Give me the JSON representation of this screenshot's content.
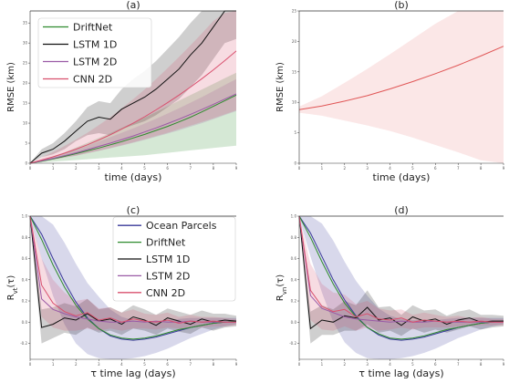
{
  "chart_data": [
    {
      "type": "line",
      "title": "(a)",
      "xlabel": "time (days)",
      "ylabel": "RMSE (km)",
      "xlim": [
        0,
        9
      ],
      "ylim": [
        0,
        38
      ],
      "grid": false,
      "legend_position": "top-left",
      "xticks": [
        "0",
        "1",
        "2",
        "3",
        "4",
        "5",
        "6",
        "7",
        "8",
        "9"
      ],
      "yticks": [
        "0",
        "5",
        "10",
        "15",
        "20",
        "25",
        "30",
        "35"
      ],
      "x": [
        0,
        0.5,
        1,
        1.5,
        2,
        2.5,
        3,
        3.5,
        4,
        4.5,
        5,
        5.5,
        6,
        6.5,
        7,
        7.5,
        8,
        8.5,
        9
      ],
      "series": [
        {
          "name": "DriftNet",
          "color": "#2e8b2e",
          "values": [
            0,
            0.5,
            1.1,
            1.7,
            2.4,
            3.1,
            3.8,
            4.6,
            5.4,
            6.3,
            7.2,
            8.2,
            9.2,
            10.3,
            11.5,
            12.8,
            14.2,
            15.6,
            17.0
          ],
          "band_lower": [
            0,
            0.2,
            0.4,
            0.6,
            0.8,
            1.0,
            1.2,
            1.4,
            1.6,
            1.8,
            2.0,
            2.3,
            2.6,
            2.9,
            3.2,
            3.5,
            3.8,
            4.1,
            4.4
          ],
          "band_upper": [
            0,
            0.8,
            1.7,
            2.7,
            3.9,
            5.1,
            6.3,
            7.5,
            8.8,
            10.1,
            11.4,
            12.8,
            14.2,
            15.6,
            17.0,
            18.4,
            19.8,
            21.2,
            22.6
          ]
        },
        {
          "name": "LSTM 1D",
          "color": "#111111",
          "values": [
            0,
            2.5,
            3.5,
            5.5,
            8.0,
            10.5,
            11.5,
            11.0,
            13.5,
            15.0,
            16.5,
            18.5,
            21.0,
            23.5,
            27.0,
            30.0,
            34.0,
            38.0,
            38.5
          ],
          "band_lower": [
            0,
            1.5,
            2.2,
            3.5,
            5.5,
            7.0,
            7.5,
            7.0,
            8.5,
            9.5,
            10.5,
            12.0,
            14.0,
            16.0,
            19.0,
            22.0,
            26.0,
            30.0,
            31.0
          ],
          "band_upper": [
            0,
            3.5,
            5.0,
            7.5,
            10.5,
            14.0,
            15.5,
            15.0,
            18.5,
            21.0,
            23.0,
            25.5,
            28.5,
            31.5,
            35.0,
            38.0,
            38.0,
            38.0,
            38.0
          ]
        },
        {
          "name": "LSTM 2D",
          "color": "#9a5aa6",
          "values": [
            0,
            0.6,
            1.2,
            1.9,
            2.6,
            3.4,
            4.2,
            5.0,
            5.9,
            6.8,
            7.8,
            8.8,
            9.9,
            11.0,
            12.2,
            13.4,
            14.7,
            16.0,
            17.3
          ],
          "band_lower": [
            0,
            0.4,
            0.9,
            1.4,
            1.9,
            2.5,
            3.1,
            3.7,
            4.4,
            5.1,
            5.8,
            6.6,
            7.4,
            8.2,
            9.1,
            10.0,
            11.0,
            12.0,
            13.0
          ],
          "band_upper": [
            0,
            0.8,
            1.6,
            2.5,
            3.4,
            4.4,
            5.4,
            6.5,
            7.6,
            8.7,
            9.9,
            11.1,
            12.4,
            13.7,
            15.1,
            16.5,
            18.0,
            19.5,
            21.0
          ]
        },
        {
          "name": "CNN 2D",
          "color": "#d9506e",
          "values": [
            0,
            0.8,
            1.6,
            2.5,
            3.5,
            4.6,
            5.8,
            7.1,
            8.5,
            10.0,
            11.6,
            13.3,
            15.1,
            17.0,
            19.0,
            21.1,
            23.3,
            25.6,
            28.0
          ],
          "band_lower": [
            0,
            0.4,
            0.9,
            1.4,
            1.9,
            2.5,
            3.1,
            3.8,
            4.5,
            5.2,
            6.0,
            6.8,
            7.6,
            8.5,
            9.4,
            10.3,
            11.2,
            12.2,
            13.2
          ],
          "band_upper": [
            0,
            1.4,
            2.8,
            4.3,
            5.9,
            7.6,
            9.5,
            11.5,
            13.7,
            16.0,
            18.4,
            21.0,
            23.7,
            26.5,
            29.4,
            32.4,
            35.5,
            37.5,
            38.0
          ]
        }
      ]
    },
    {
      "type": "line",
      "title": "(b)",
      "xlabel": "time (days)",
      "ylabel": "RMSE (km)",
      "xlim": [
        0,
        9
      ],
      "ylim": [
        0,
        25
      ],
      "grid": false,
      "xticks": [
        "0",
        "1",
        "2",
        "3",
        "4",
        "5",
        "6",
        "7",
        "8",
        "9"
      ],
      "yticks": [
        "0",
        "5",
        "10",
        "15",
        "20",
        "25"
      ],
      "x": [
        0,
        1,
        2,
        3,
        4,
        5,
        6,
        7,
        8,
        9
      ],
      "series": [
        {
          "color": "#e05555",
          "values": [
            8.8,
            9.4,
            10.2,
            11.1,
            12.2,
            13.4,
            14.7,
            16.1,
            17.6,
            19.2
          ],
          "band_lower": [
            8.3,
            7.8,
            7.0,
            6.2,
            5.3,
            4.2,
            3.0,
            1.8,
            0.5,
            0.0
          ],
          "band_upper": [
            9.3,
            11.0,
            13.2,
            15.5,
            17.9,
            20.4,
            22.9,
            25.0,
            25.0,
            25.0
          ]
        }
      ]
    },
    {
      "type": "line",
      "title": "(c)",
      "xlabel": "τ time lag (days)",
      "ylabel": "R_{v_t}(τ)",
      "xlim": [
        0,
        9
      ],
      "ylim": [
        -0.35,
        1.0
      ],
      "grid": false,
      "legend_position": "top-right",
      "xticks": [
        "0",
        "1",
        "2",
        "3",
        "4",
        "5",
        "6",
        "7",
        "8",
        "9"
      ],
      "yticks": [
        "-0.2",
        "0.0",
        "0.2",
        "0.4",
        "0.6",
        "0.8",
        "1.0"
      ],
      "x": [
        0,
        0.5,
        1,
        1.5,
        2,
        2.5,
        3,
        3.5,
        4,
        4.5,
        5,
        5.5,
        6,
        6.5,
        7,
        7.5,
        8,
        8.5,
        9
      ],
      "series": [
        {
          "name": "Ocean Parcels",
          "color": "#3a3a9a",
          "values": [
            1.0,
            0.83,
            0.6,
            0.38,
            0.19,
            0.04,
            -0.06,
            -0.13,
            -0.16,
            -0.17,
            -0.16,
            -0.14,
            -0.11,
            -0.08,
            -0.05,
            -0.03,
            -0.01,
            0.0,
            0.01
          ],
          "band_lower": [
            0.98,
            0.6,
            0.25,
            -0.02,
            -0.2,
            -0.3,
            -0.34,
            -0.35,
            -0.35,
            -0.34,
            -0.32,
            -0.29,
            -0.25,
            -0.2,
            -0.15,
            -0.11,
            -0.07,
            -0.04,
            -0.02
          ],
          "band_upper": [
            1.0,
            1.0,
            0.92,
            0.75,
            0.55,
            0.37,
            0.24,
            0.12,
            0.05,
            0.02,
            0.01,
            0.01,
            0.02,
            0.03,
            0.04,
            0.04,
            0.04,
            0.04,
            0.04
          ]
        },
        {
          "name": "DriftNet",
          "color": "#2e8b2e",
          "values": [
            1.0,
            0.78,
            0.54,
            0.33,
            0.16,
            0.03,
            -0.06,
            -0.12,
            -0.15,
            -0.16,
            -0.15,
            -0.13,
            -0.1,
            -0.07,
            -0.05,
            -0.03,
            -0.01,
            0.0,
            0.01
          ]
        },
        {
          "name": "LSTM 1D",
          "color": "#111111",
          "values": [
            1.0,
            -0.05,
            -0.02,
            0.04,
            0.02,
            0.08,
            0.01,
            0.03,
            -0.02,
            0.05,
            0.02,
            -0.03,
            0.04,
            0.01,
            -0.02,
            0.03,
            0.0,
            0.02,
            0.01
          ],
          "band_lower": [
            0.98,
            -0.2,
            -0.15,
            -0.1,
            -0.12,
            -0.05,
            -0.1,
            -0.08,
            -0.12,
            -0.06,
            -0.08,
            -0.12,
            -0.06,
            -0.09,
            -0.11,
            -0.05,
            -0.08,
            -0.05,
            -0.04
          ],
          "band_upper": [
            1.0,
            0.12,
            0.14,
            0.18,
            0.15,
            0.22,
            0.12,
            0.14,
            0.09,
            0.16,
            0.12,
            0.07,
            0.13,
            0.1,
            0.07,
            0.11,
            0.08,
            0.08,
            0.06
          ]
        },
        {
          "name": "LSTM 2D",
          "color": "#9a5aa6",
          "values": [
            1.0,
            0.22,
            0.12,
            0.08,
            0.05,
            0.03,
            0.01,
            0.0,
            0.0,
            0.01,
            0.0,
            0.01,
            0.0,
            0.0,
            0.01,
            0.0,
            0.0,
            0.0,
            0.0
          ]
        },
        {
          "name": "CNN 2D",
          "color": "#d9506e",
          "values": [
            1.0,
            0.35,
            0.18,
            0.1,
            0.06,
            0.09,
            0.02,
            0.04,
            0.0,
            0.03,
            0.01,
            0.0,
            0.02,
            -0.01,
            0.01,
            0.0,
            0.01,
            0.0,
            0.0
          ],
          "band_lower": [
            0.98,
            0.05,
            -0.05,
            -0.08,
            -0.08,
            -0.06,
            -0.08,
            -0.06,
            -0.08,
            -0.06,
            -0.06,
            -0.07,
            -0.05,
            -0.06,
            -0.05,
            -0.05,
            -0.04,
            -0.04,
            -0.03
          ],
          "band_upper": [
            1.0,
            0.6,
            0.4,
            0.28,
            0.2,
            0.22,
            0.13,
            0.14,
            0.09,
            0.12,
            0.08,
            0.07,
            0.09,
            0.05,
            0.07,
            0.05,
            0.05,
            0.04,
            0.03
          ]
        }
      ]
    },
    {
      "type": "line",
      "title": "(d)",
      "xlabel": "τ time lag (days)",
      "ylabel": "R_{v_n}(τ)",
      "xlim": [
        0,
        9
      ],
      "ylim": [
        -0.35,
        1.0
      ],
      "grid": false,
      "xticks": [
        "0",
        "1",
        "2",
        "3",
        "4",
        "5",
        "6",
        "7",
        "8",
        "9"
      ],
      "yticks": [
        "-0.2",
        "0.0",
        "0.2",
        "0.4",
        "0.6",
        "0.8",
        "1.0"
      ],
      "x": [
        0,
        0.5,
        1,
        1.5,
        2,
        2.5,
        3,
        3.5,
        4,
        4.5,
        5,
        5.5,
        6,
        6.5,
        7,
        7.5,
        8,
        8.5,
        9
      ],
      "series": [
        {
          "name": "Ocean Parcels",
          "color": "#3a3a9a",
          "values": [
            1.0,
            0.84,
            0.62,
            0.4,
            0.21,
            0.06,
            -0.05,
            -0.12,
            -0.16,
            -0.17,
            -0.16,
            -0.14,
            -0.11,
            -0.08,
            -0.05,
            -0.03,
            -0.01,
            0.0,
            0.01
          ],
          "band_lower": [
            0.98,
            0.62,
            0.28,
            0.0,
            -0.19,
            -0.29,
            -0.34,
            -0.35,
            -0.35,
            -0.34,
            -0.32,
            -0.29,
            -0.25,
            -0.2,
            -0.15,
            -0.11,
            -0.07,
            -0.04,
            -0.02
          ],
          "band_upper": [
            1.0,
            1.0,
            0.93,
            0.77,
            0.57,
            0.39,
            0.25,
            0.13,
            0.06,
            0.03,
            0.02,
            0.02,
            0.02,
            0.03,
            0.04,
            0.04,
            0.04,
            0.04,
            0.04
          ]
        },
        {
          "name": "DriftNet",
          "color": "#2e8b2e",
          "values": [
            1.0,
            0.8,
            0.57,
            0.36,
            0.18,
            0.05,
            -0.05,
            -0.11,
            -0.15,
            -0.16,
            -0.15,
            -0.13,
            -0.1,
            -0.07,
            -0.05,
            -0.03,
            -0.01,
            0.0,
            0.01
          ]
        },
        {
          "name": "LSTM 1D",
          "color": "#111111",
          "values": [
            1.0,
            -0.06,
            0.02,
            0.0,
            0.06,
            0.04,
            0.14,
            0.02,
            0.04,
            -0.03,
            0.05,
            0.01,
            0.03,
            -0.02,
            0.02,
            0.04,
            0.0,
            0.01,
            0.01
          ],
          "band_lower": [
            0.98,
            -0.2,
            -0.12,
            -0.12,
            -0.08,
            -0.08,
            -0.02,
            -0.1,
            -0.08,
            -0.13,
            -0.06,
            -0.1,
            -0.07,
            -0.1,
            -0.07,
            -0.04,
            -0.07,
            -0.05,
            -0.04
          ],
          "band_upper": [
            1.0,
            0.1,
            0.16,
            0.12,
            0.2,
            0.16,
            0.3,
            0.14,
            0.15,
            0.07,
            0.16,
            0.11,
            0.12,
            0.06,
            0.1,
            0.12,
            0.07,
            0.07,
            0.06
          ]
        },
        {
          "name": "LSTM 2D",
          "color": "#9a5aa6",
          "values": [
            1.0,
            0.25,
            0.13,
            0.09,
            0.05,
            0.03,
            0.02,
            0.01,
            0.0,
            0.01,
            0.0,
            0.0,
            0.01,
            0.0,
            0.0,
            0.0,
            0.0,
            0.0,
            0.0
          ]
        },
        {
          "name": "CNN 2D",
          "color": "#d9506e",
          "values": [
            1.0,
            0.3,
            0.15,
            0.1,
            0.12,
            0.05,
            0.08,
            0.03,
            0.02,
            0.04,
            0.0,
            0.02,
            0.01,
            0.0,
            0.01,
            0.0,
            0.01,
            0.0,
            0.0
          ],
          "band_lower": [
            0.98,
            0.02,
            -0.07,
            -0.08,
            -0.04,
            -0.08,
            -0.05,
            -0.08,
            -0.07,
            -0.05,
            -0.07,
            -0.05,
            -0.05,
            -0.05,
            -0.04,
            -0.04,
            -0.03,
            -0.03,
            -0.03
          ],
          "band_upper": [
            1.0,
            0.55,
            0.36,
            0.28,
            0.26,
            0.17,
            0.2,
            0.13,
            0.11,
            0.12,
            0.07,
            0.09,
            0.07,
            0.05,
            0.06,
            0.04,
            0.05,
            0.03,
            0.03
          ]
        }
      ]
    }
  ]
}
